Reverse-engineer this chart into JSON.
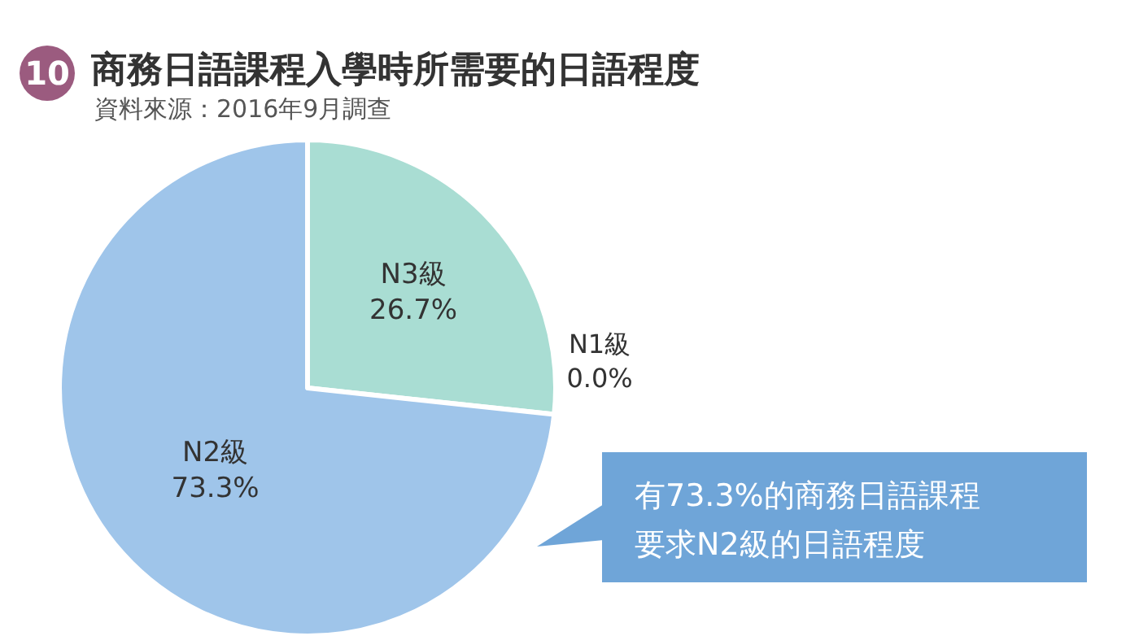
{
  "chart_data": {
    "type": "pie",
    "title": "商務日語課程入學時所需要的日語程度",
    "subtitle": "資料來源：2016年9月調查",
    "categories": [
      "N3級",
      "N1級",
      "N2級"
    ],
    "values": [
      26.7,
      0.0,
      73.3
    ],
    "value_labels": [
      "26.7%",
      "0.0%",
      "73.3%"
    ],
    "colors": [
      "#a9ddd3",
      "#7f7f7f",
      "#9fc5ea"
    ],
    "legend": false,
    "annotations": [
      "10",
      "有73.3%的商務日語課程",
      "要求N2級的日語程度"
    ]
  }
}
